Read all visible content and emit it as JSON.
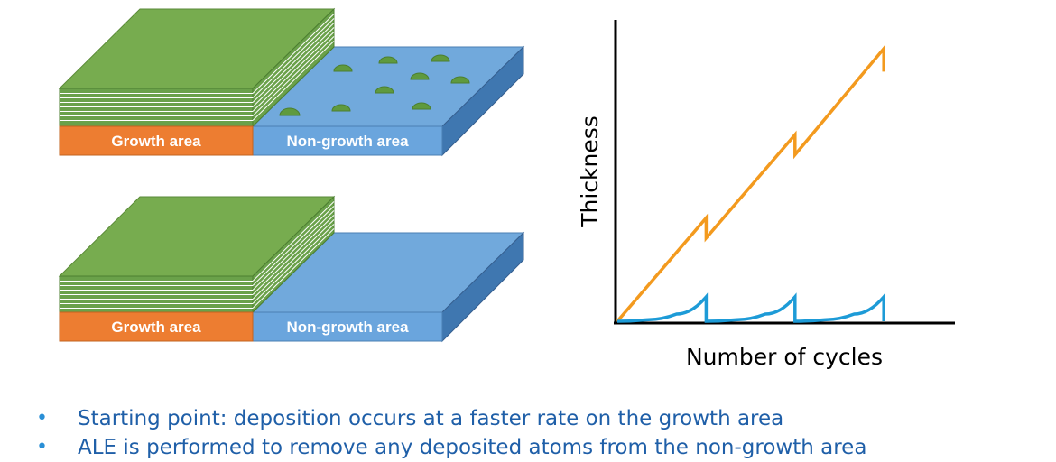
{
  "diagram": {
    "top_block": {
      "growth_label": "Growth area",
      "nongrowth_label": "Non-growth area"
    },
    "bottom_block": {
      "growth_label": "Growth area",
      "nongrowth_label": "Non-growth area"
    }
  },
  "chart_data": {
    "type": "line",
    "title": "",
    "xlabel": "Number of cycles",
    "ylabel": "Thickness",
    "xlim": [
      0,
      10
    ],
    "ylim": [
      0,
      10
    ],
    "ticks": false,
    "grid": false,
    "series": [
      {
        "color": "#f39a1e",
        "points": [
          [
            0,
            0
          ],
          [
            3,
            3.6
          ],
          [
            3,
            2.9
          ],
          [
            6,
            6.5
          ],
          [
            6,
            5.8
          ],
          [
            9,
            9.5
          ],
          [
            9,
            8.7
          ]
        ]
      },
      {
        "color": "#1d9bd7",
        "points": [
          [
            0,
            0
          ],
          [
            1,
            0.05
          ],
          [
            2,
            0.25
          ],
          [
            3,
            0.85
          ],
          [
            3,
            0
          ],
          [
            4,
            0.05
          ],
          [
            5,
            0.25
          ],
          [
            6,
            0.85
          ],
          [
            6,
            0
          ],
          [
            7,
            0.05
          ],
          [
            8,
            0.25
          ],
          [
            9,
            0.85
          ],
          [
            9,
            0
          ]
        ]
      }
    ]
  },
  "bullets": [
    "Starting point: deposition occurs at a faster rate on the growth area",
    "ALE is performed to remove any deposited atoms from the non-growth area"
  ],
  "colors": {
    "growth_top": "#77ac4f",
    "growth_layers": "#6aa14a",
    "growth_front": "#ed7d31",
    "nongrowth_top": "#71a9dc",
    "nongrowth_front": "#6aa5dd",
    "nongrowth_side": "#3f77b0",
    "nuclei": "#5f9a3e",
    "bullet_text": "#1f5fa8",
    "bullet_dot": "#2a8fd6"
  }
}
